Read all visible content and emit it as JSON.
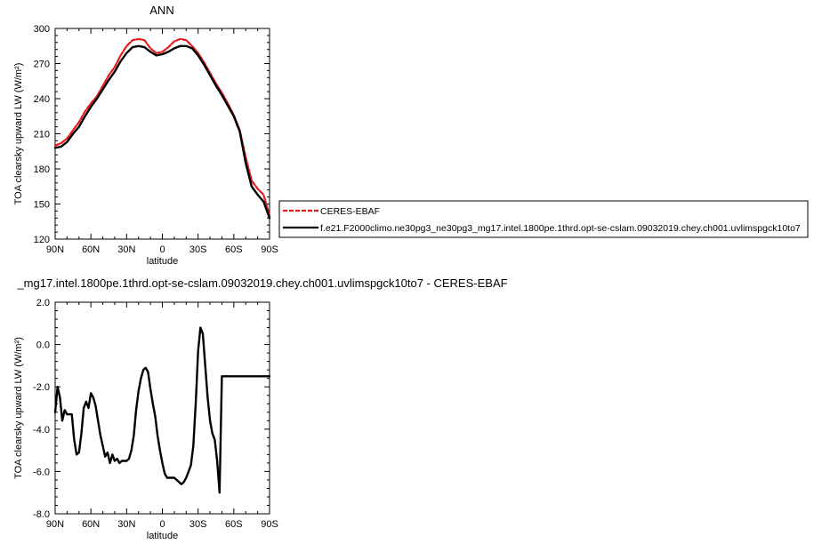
{
  "chart_data": [
    {
      "type": "line",
      "title": "ANN",
      "xlabel": "latitude",
      "ylabel": "TOA clearsky upward LW (W/m²)",
      "ylim": [
        120,
        300
      ],
      "xlim": [
        -90,
        90
      ],
      "yticks": [
        "120",
        "150",
        "180",
        "210",
        "240",
        "270",
        "300"
      ],
      "xticks": [
        "90N",
        "60N",
        "30N",
        "0",
        "30S",
        "60S",
        "90S"
      ],
      "legend_position": "right",
      "series": [
        {
          "name": "CERES-EBAF",
          "color": "#e41a1c",
          "dash": true,
          "x": [
            -90,
            -85,
            -80,
            -75,
            -70,
            -65,
            -60,
            -55,
            -50,
            -45,
            -40,
            -35,
            -30,
            -25,
            -20,
            -15,
            -10,
            -5,
            0,
            5,
            10,
            15,
            20,
            25,
            30,
            35,
            40,
            45,
            50,
            55,
            60,
            65,
            70,
            75,
            80,
            85,
            90
          ],
          "y": [
            200,
            202,
            206,
            213,
            220,
            229,
            236,
            242,
            251,
            260,
            267,
            277,
            285,
            290,
            291,
            290,
            283,
            279,
            280,
            284,
            289,
            291,
            290,
            285,
            279,
            271,
            262,
            253,
            245,
            236,
            226,
            213,
            190,
            170,
            163,
            158,
            140
          ]
        },
        {
          "name": "f.e21.F2000climo.ne30pg3_ne30pg3_mg17.intel.1800pe.1thrd.opt-se-cslam.09032019.chey.ch001.uvlimspgck10to7",
          "color": "#000000",
          "dash": false,
          "x": [
            -90,
            -85,
            -80,
            -75,
            -70,
            -65,
            -60,
            -55,
            -50,
            -45,
            -40,
            -35,
            -30,
            -25,
            -20,
            -15,
            -10,
            -5,
            0,
            5,
            10,
            15,
            20,
            25,
            30,
            35,
            40,
            45,
            50,
            55,
            60,
            65,
            70,
            75,
            80,
            85,
            90
          ],
          "y": [
            198,
            199,
            203,
            210,
            216,
            225,
            233,
            240,
            248,
            256,
            263,
            272,
            279,
            284,
            285,
            284,
            280,
            277,
            278,
            280,
            283,
            285,
            285,
            283,
            277,
            269,
            260,
            251,
            243,
            234,
            225,
            212,
            185,
            165,
            158,
            152,
            138
          ]
        }
      ]
    },
    {
      "type": "line",
      "title": "_mg17.intel.1800pe.1thrd.opt-se-cslam.09032019.chey.ch001.uvlimspgck10to7 - CERES-EBAF",
      "xlabel": "latitude",
      "ylabel": "TOA clearsky upward LW (W/m²)",
      "ylim": [
        -8,
        2
      ],
      "xlim": [
        -90,
        90
      ],
      "yticks": [
        "-8.0",
        "-6.0",
        "-4.0",
        "-2.0",
        "0.0",
        "2.0"
      ],
      "xticks": [
        "90N",
        "60N",
        "30N",
        "0",
        "30S",
        "60S",
        "90S"
      ],
      "series": [
        {
          "color": "#000000",
          "x": [
            -90,
            -88,
            -86,
            -84,
            -82,
            -80,
            -78,
            -76,
            -74,
            -72,
            -70,
            -68,
            -66,
            -64,
            -62,
            -60,
            -58,
            -56,
            -54,
            -52,
            -50,
            -48,
            -46,
            -44,
            -42,
            -40,
            -38,
            -36,
            -34,
            -32,
            -30,
            -28,
            -26,
            -24,
            -22,
            -20,
            -18,
            -16,
            -14,
            -12,
            -10,
            -8,
            -6,
            -4,
            -2,
            0,
            2,
            4,
            6,
            8,
            10,
            12,
            14,
            16,
            18,
            20,
            22,
            24,
            26,
            28,
            30,
            32,
            34,
            36,
            38,
            40,
            42,
            44,
            46,
            48,
            50,
            52,
            54,
            56,
            58,
            60,
            62,
            64,
            66,
            68,
            70,
            72,
            74,
            76,
            78,
            80,
            82,
            84,
            86,
            88,
            90
          ],
          "y": [
            -3.2,
            -2.0,
            -2.5,
            -3.6,
            -3.1,
            -3.3,
            -3.3,
            -3.3,
            -4.5,
            -5.2,
            -5.1,
            -4.2,
            -3.0,
            -2.7,
            -3.0,
            -2.3,
            -2.5,
            -2.9,
            -3.6,
            -4.3,
            -4.8,
            -5.3,
            -5.1,
            -5.6,
            -5.2,
            -5.5,
            -5.4,
            -5.6,
            -5.5,
            -5.5,
            -5.5,
            -5.4,
            -5.0,
            -4.3,
            -3.1,
            -2.2,
            -1.6,
            -1.2,
            -1.1,
            -1.3,
            -2.1,
            -2.8,
            -3.4,
            -4.3,
            -5.0,
            -5.6,
            -6.1,
            -6.3,
            -6.3,
            -6.3,
            -6.3,
            -6.4,
            -6.5,
            -6.6,
            -6.5,
            -6.3,
            -6.0,
            -5.7,
            -4.8,
            -2.8,
            -0.3,
            0.8,
            0.5,
            -1.0,
            -2.5,
            -3.6,
            -4.2,
            -4.5,
            -5.5,
            -7.0,
            -1.5,
            -1.5,
            -1.5,
            -1.5,
            -1.5,
            -1.5,
            -1.5,
            -1.5,
            -1.5,
            -1.5,
            -1.5,
            -1.5,
            -1.5,
            -1.5,
            -1.5,
            -1.5,
            -1.5,
            -1.5,
            -1.5,
            -1.5,
            -1.5
          ]
        }
      ]
    }
  ]
}
